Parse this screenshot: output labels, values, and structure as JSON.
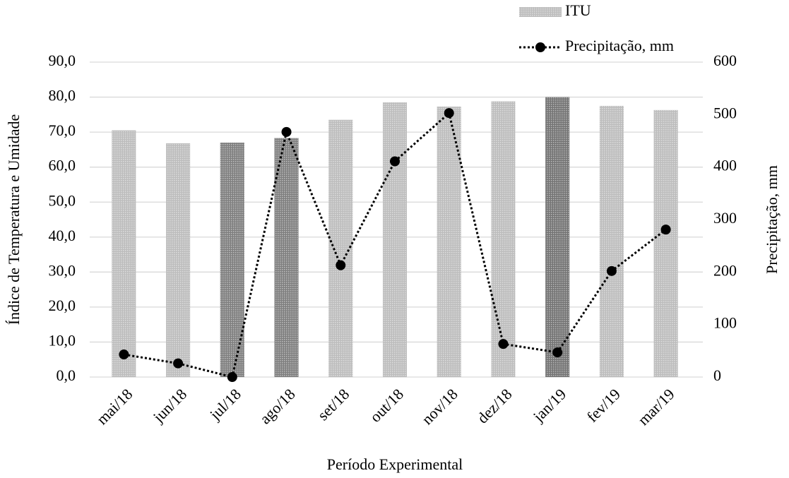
{
  "chart_data": {
    "type": "bar",
    "x_label": "Período Experimental",
    "y_label": "Índice de Temperatura e Umidade",
    "y2_label": "Precipitação, mm",
    "categories": [
      "mai/18",
      "jun/18",
      "jul/18",
      "ago/18",
      "set/18",
      "out/18",
      "nov/18",
      "dez/18",
      "jan/19",
      "fev/19",
      "mar/19"
    ],
    "series": [
      {
        "name": "ITU",
        "type": "bar",
        "color": "#9a9a9a",
        "bar_colors": [
          "#9a9a9a",
          "#9a9a9a",
          "#3a3a3a",
          "#3a3a3a",
          "#9a9a9a",
          "#9a9a9a",
          "#9a9a9a",
          "#9a9a9a",
          "#2a2a2a",
          "#9a9a9a",
          "#9a9a9a"
        ],
        "values": [
          70.5,
          66.8,
          67.0,
          68.3,
          73.5,
          78.5,
          77.3,
          78.8,
          80.0,
          77.5,
          76.3
        ]
      },
      {
        "name": "Precipitação, mm",
        "type": "line",
        "axis": "y2",
        "color": "#000000",
        "values": [
          43,
          26,
          0,
          467,
          213,
          411,
          503,
          63,
          47,
          202,
          281
        ]
      }
    ],
    "ylim": [
      0,
      90
    ],
    "yticks": [
      {
        "value": 0,
        "label": "0,0"
      },
      {
        "value": 10,
        "label": "10,0"
      },
      {
        "value": 20,
        "label": "20,0"
      },
      {
        "value": 30,
        "label": "30,0"
      },
      {
        "value": 40,
        "label": "40,0"
      },
      {
        "value": 50,
        "label": "50,0"
      },
      {
        "value": 60,
        "label": "60,0"
      },
      {
        "value": 70,
        "label": "70,0"
      },
      {
        "value": 80,
        "label": "80,0"
      },
      {
        "value": 90,
        "label": "90,0"
      }
    ],
    "y2lim": [
      0,
      600
    ],
    "y2ticks": [
      0,
      100,
      200,
      300,
      400,
      500,
      600
    ],
    "grid": true
  }
}
